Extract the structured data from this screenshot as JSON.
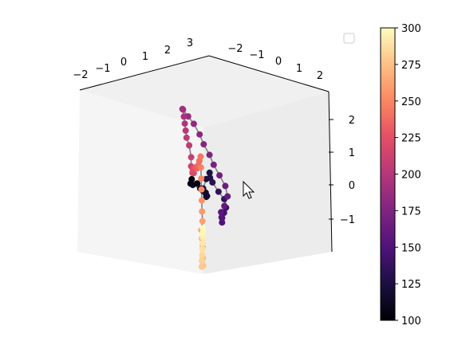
{
  "chart_data": {
    "type": "scatter3d",
    "title": "",
    "xlabel": "",
    "ylabel": "",
    "zlabel": "",
    "x_ticks": [
      "−2",
      "−1",
      "0",
      "1",
      "2",
      "3"
    ],
    "y_ticks": [
      "−2",
      "−1",
      "0",
      "1",
      "2"
    ],
    "z_ticks": [
      "2",
      "1",
      "0",
      "−1"
    ],
    "colorbar": {
      "colormap": "magma",
      "range": [
        100,
        300
      ],
      "ticks": [
        "300",
        "275",
        "250",
        "225",
        "200",
        "175",
        "150",
        "125",
        "100"
      ]
    },
    "legend": "top-right, empty",
    "line_color": "#7f7f7f",
    "pane_color": "#f2f2f2",
    "series": [
      {
        "points": [
          [
            0.9,
            0.6,
            -0.6,
            100
          ],
          [
            1.1,
            0.5,
            -0.4,
            102
          ],
          [
            1.3,
            0.4,
            -0.3,
            104
          ],
          [
            1.5,
            0.5,
            -0.5,
            106
          ],
          [
            1.6,
            0.7,
            -0.6,
            108
          ],
          [
            1.4,
            0.9,
            -0.7,
            110
          ],
          [
            1.2,
            1.0,
            -0.8,
            112
          ],
          [
            0.9,
            0.8,
            -0.8,
            114
          ],
          [
            0.6,
            0.5,
            -0.7,
            116
          ],
          [
            0.4,
            0.3,
            -0.5,
            118
          ],
          [
            0.3,
            0.1,
            -0.3,
            120
          ],
          [
            0.2,
            0.2,
            0.0,
            123
          ],
          [
            0.1,
            0.3,
            0.2,
            126
          ],
          [
            0.2,
            0.4,
            0.0,
            129
          ],
          [
            0.3,
            0.6,
            -0.2,
            132
          ],
          [
            0.2,
            0.8,
            -0.5,
            135
          ],
          [
            0.0,
            0.9,
            -0.7,
            138
          ],
          [
            -0.2,
            0.8,
            -0.9,
            141
          ],
          [
            -0.3,
            0.6,
            -1.0,
            144
          ],
          [
            -0.4,
            0.4,
            -1.1,
            147
          ],
          [
            -0.5,
            0.3,
            -1.2,
            150
          ],
          [
            -0.6,
            0.2,
            -1.0,
            153
          ],
          [
            -0.7,
            0.1,
            -0.8,
            156
          ],
          [
            -0.8,
            0.2,
            -0.6,
            159
          ],
          [
            -0.9,
            0.3,
            -0.3,
            162
          ],
          [
            -0.8,
            0.3,
            0.0,
            165
          ],
          [
            -0.6,
            0.2,
            0.3,
            168
          ],
          [
            -0.4,
            0.1,
            0.6,
            171
          ],
          [
            -0.3,
            0.0,
            0.9,
            174
          ],
          [
            -0.1,
            -0.1,
            1.2,
            177
          ],
          [
            0.0,
            -0.2,
            1.5,
            180
          ],
          [
            0.2,
            -0.3,
            1.8,
            183
          ],
          [
            0.4,
            -0.4,
            2.0,
            186
          ],
          [
            0.6,
            -0.5,
            2.2,
            189
          ],
          [
            0.8,
            -0.3,
            2.1,
            192
          ],
          [
            1.0,
            -0.1,
            1.8,
            195
          ],
          [
            1.2,
            0.1,
            1.5,
            198
          ],
          [
            1.4,
            0.3,
            1.2,
            201
          ],
          [
            1.6,
            0.5,
            0.9,
            204
          ],
          [
            1.7,
            0.7,
            0.6,
            207
          ],
          [
            1.5,
            0.6,
            0.3,
            210
          ],
          [
            1.3,
            0.4,
            0.1,
            213
          ],
          [
            1.0,
            0.2,
            0.0,
            216
          ],
          [
            0.7,
            0.0,
            0.1,
            219
          ],
          [
            0.4,
            -0.3,
            0.3,
            222
          ],
          [
            0.1,
            -0.5,
            0.5,
            225
          ],
          [
            -0.2,
            -0.7,
            0.6,
            228
          ],
          [
            -0.5,
            -0.9,
            0.7,
            231
          ],
          [
            -0.8,
            -1.1,
            0.8,
            234
          ],
          [
            -1.1,
            -1.3,
            1.0,
            237
          ],
          [
            -1.3,
            -1.4,
            1.2,
            240
          ],
          [
            -1.5,
            -1.5,
            1.4,
            243
          ],
          [
            -1.6,
            -1.6,
            1.1,
            246
          ],
          [
            -1.7,
            -1.7,
            0.8,
            249
          ],
          [
            -1.8,
            -1.8,
            0.5,
            252
          ],
          [
            -1.9,
            -1.9,
            0.2,
            255
          ],
          [
            -2.0,
            -2.0,
            -0.1,
            258
          ],
          [
            -2.0,
            -2.0,
            -0.4,
            261
          ],
          [
            -1.9,
            -2.0,
            -0.7,
            264
          ],
          [
            -1.8,
            -1.9,
            -1.0,
            267
          ],
          [
            -1.7,
            -1.8,
            -1.3,
            270
          ],
          [
            -1.8,
            -1.9,
            -1.6,
            273
          ],
          [
            -1.9,
            -2.0,
            -1.8,
            276
          ],
          [
            -1.7,
            -1.9,
            -1.9,
            279
          ],
          [
            -1.5,
            -1.7,
            -1.8,
            282
          ],
          [
            -1.3,
            -1.5,
            -1.7,
            285
          ],
          [
            -1.1,
            -1.3,
            -1.6,
            288
          ],
          [
            -0.9,
            -1.1,
            -1.5,
            291
          ],
          [
            -0.7,
            -0.9,
            -1.4,
            294
          ],
          [
            -0.6,
            -0.8,
            -1.3,
            297
          ],
          [
            -0.5,
            -0.7,
            -1.2,
            300
          ]
        ]
      }
    ]
  }
}
